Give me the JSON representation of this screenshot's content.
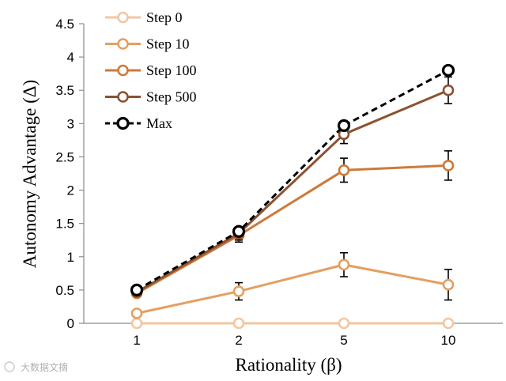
{
  "chart_data": {
    "type": "line",
    "title": "",
    "xlabel": "Rationality (β)",
    "ylabel": "Autonomy Advantage (Δ)",
    "categories": [
      "1",
      "2",
      "5",
      "10"
    ],
    "ylim": [
      0,
      4.5
    ],
    "yticks": [
      0,
      0.5,
      1,
      1.5,
      2,
      2.5,
      3,
      3.5,
      4,
      4.5
    ],
    "ytick_labels": [
      "0",
      "0.5",
      "1",
      "1.5",
      "2",
      "2.5",
      "3",
      "3.5",
      "4",
      "4.5"
    ],
    "legend_position": "top-left",
    "series": [
      {
        "name": "Step 0",
        "color": "#f3c6a2",
        "dashed": false,
        "values": [
          0.0,
          0.0,
          0.0,
          0.0
        ],
        "errors": [
          0,
          0,
          0,
          0
        ]
      },
      {
        "name": "Step 10",
        "color": "#e49f62",
        "dashed": false,
        "values": [
          0.15,
          0.48,
          0.88,
          0.58
        ],
        "errors": [
          0,
          0.13,
          0.18,
          0.23
        ]
      },
      {
        "name": "Step 100",
        "color": "#cd7a3a",
        "dashed": false,
        "values": [
          0.45,
          1.32,
          2.3,
          2.37
        ],
        "errors": [
          0,
          0.1,
          0.18,
          0.22
        ]
      },
      {
        "name": "Step 500",
        "color": "#8b5230",
        "dashed": false,
        "values": [
          0.47,
          1.35,
          2.84,
          3.5
        ],
        "errors": [
          0,
          0.1,
          0.14,
          0.2
        ]
      },
      {
        "name": "Max",
        "color": "#000000",
        "dashed": true,
        "values": [
          0.5,
          1.38,
          2.97,
          3.8
        ],
        "errors": [
          0,
          0,
          0,
          0
        ]
      }
    ]
  },
  "watermark": {
    "text": "大数据文摘"
  }
}
